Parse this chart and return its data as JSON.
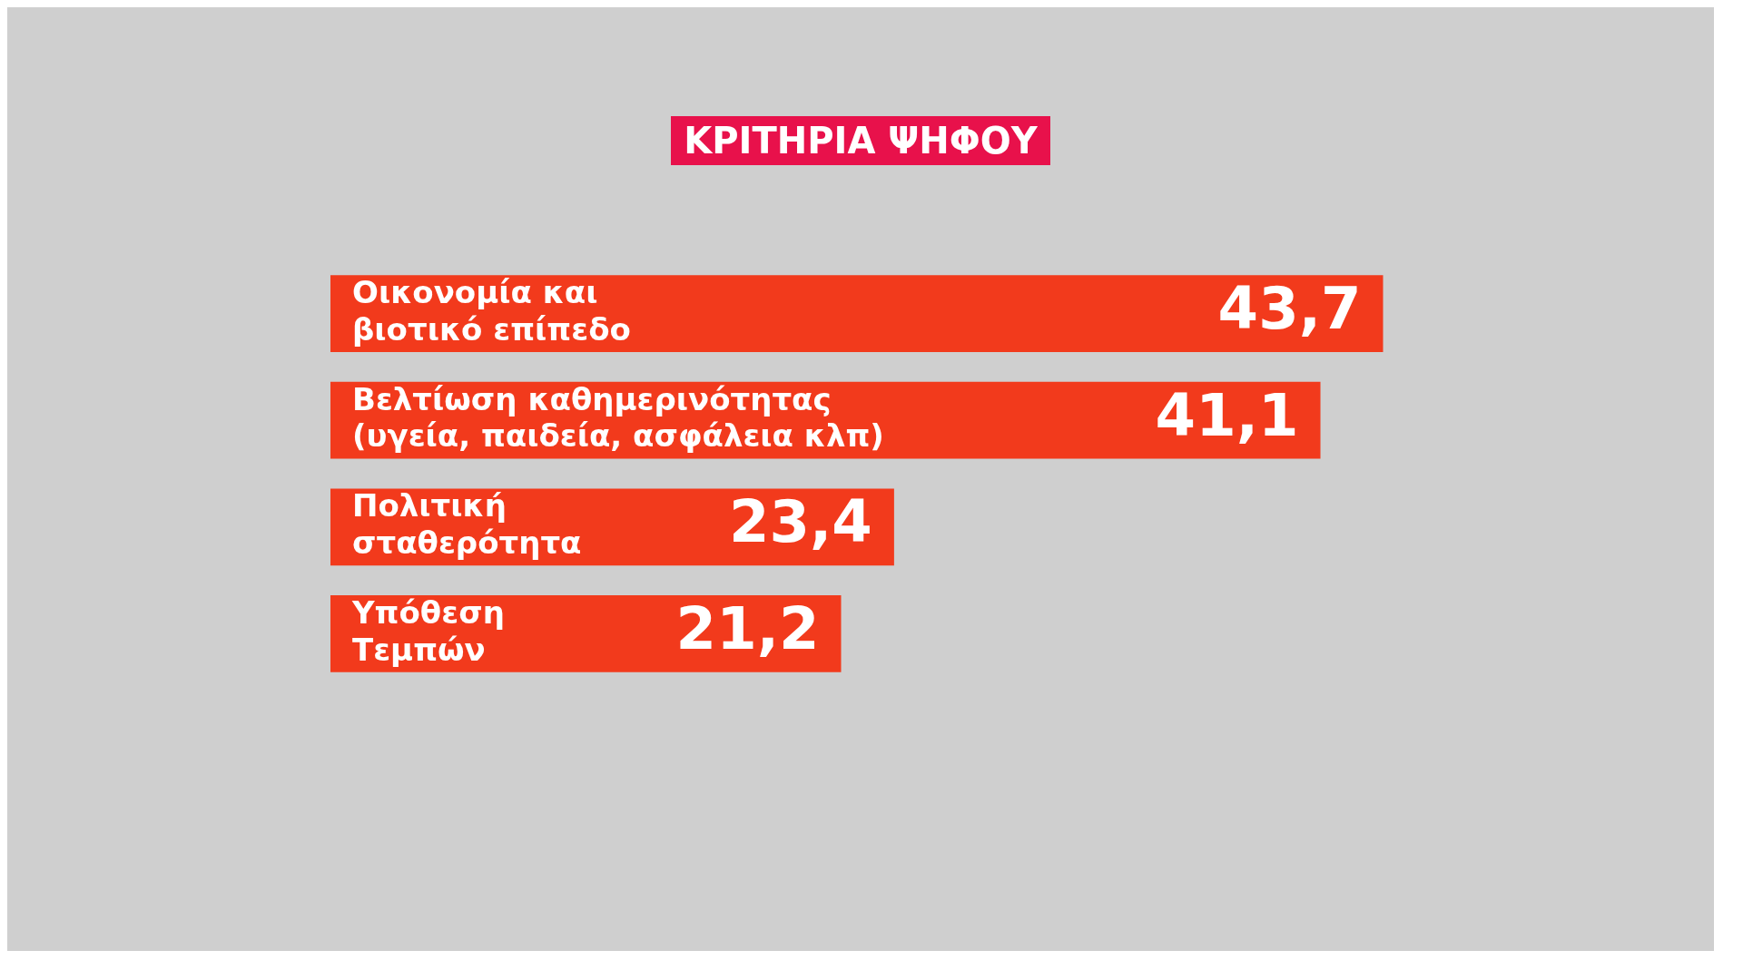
{
  "chart_data": {
    "type": "bar",
    "orientation": "horizontal",
    "title": "ΚΡΙΤΗΡΙΑ ΨΗΦΟΥ",
    "categories": [
      "Οικονομία και βιοτικό επίπεδο",
      "Βελτίωση καθημερινότητας (υγεία, παιδεία, ασφάλεια κλπ)",
      "Πολιτική σταθερότητα",
      "Υπόθεση Τεμπών"
    ],
    "values": [
      43.7,
      41.1,
      23.4,
      21.2
    ],
    "value_labels": [
      "43,7",
      "41,1",
      "23,4",
      "21,2"
    ],
    "color": "#f23a1c"
  }
}
